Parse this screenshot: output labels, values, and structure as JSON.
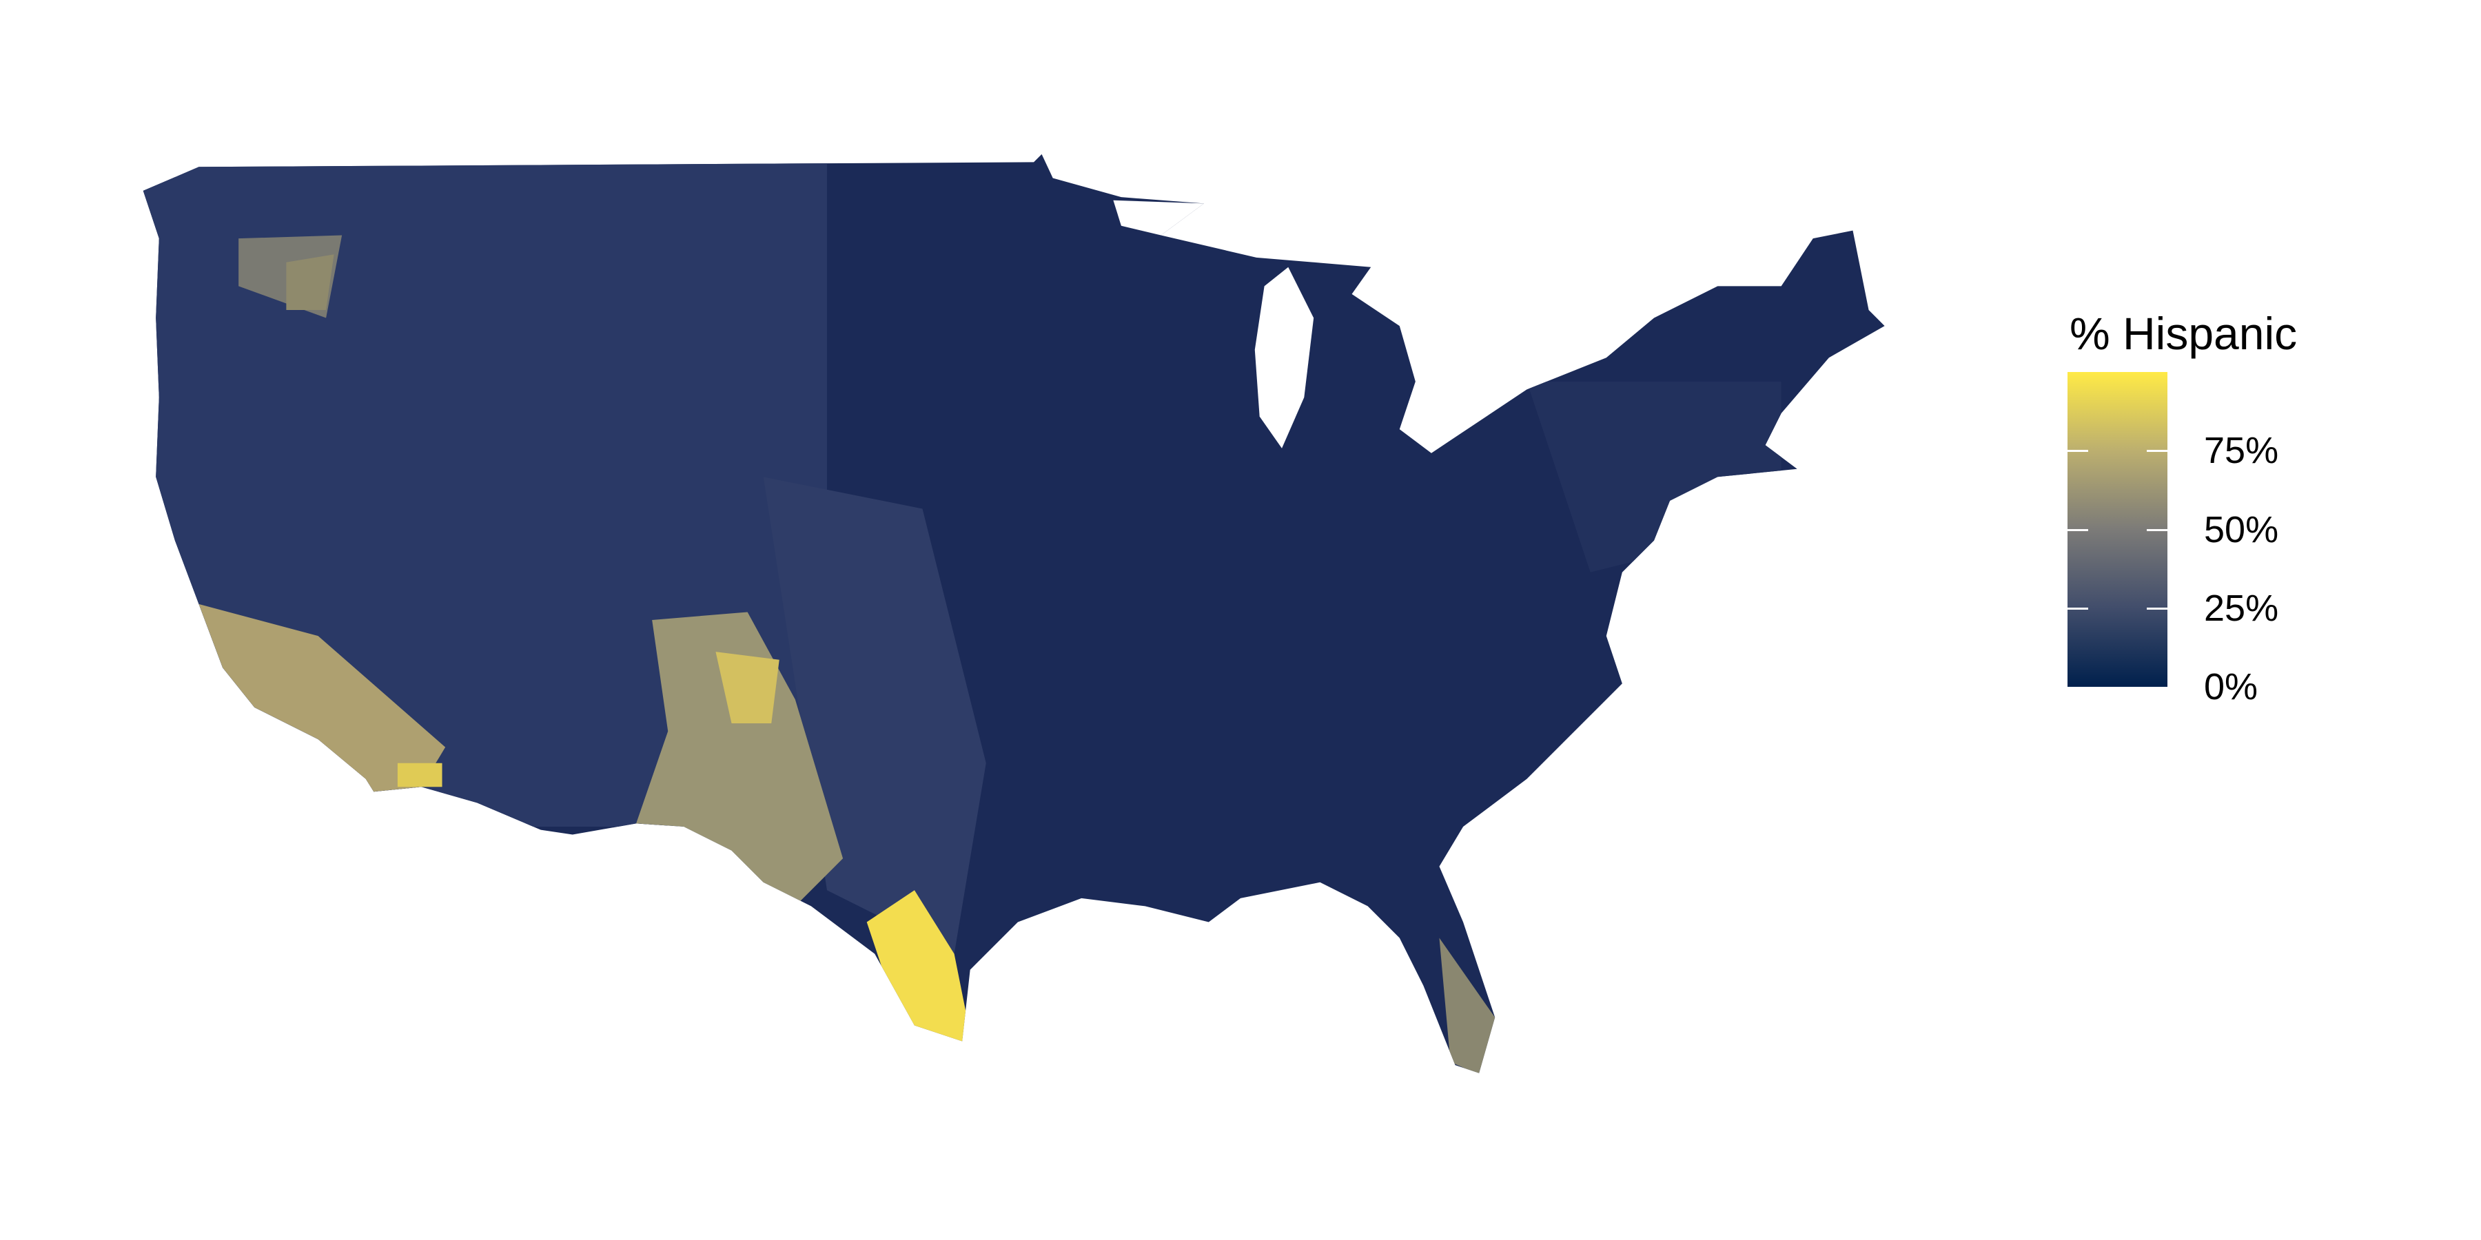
{
  "chart_data": {
    "type": "choropleth",
    "title": "",
    "region": "Contiguous United States, by county",
    "legend": {
      "title": "% Hispanic",
      "placement": "right",
      "range": [
        0,
        100
      ],
      "ticks": [
        {
          "value": 0,
          "label": "0%"
        },
        {
          "value": 25,
          "label": "25%"
        },
        {
          "value": 50,
          "label": "50%"
        },
        {
          "value": 75,
          "label": "75%"
        }
      ],
      "colorscale": [
        "#00204D",
        "#414D6B",
        "#7C7B78",
        "#BCAF6F",
        "#FFEA46"
      ]
    },
    "colors": {
      "base_county": "#1b2a57",
      "west_county": "#2a3966",
      "border": "#ffffff"
    }
  }
}
